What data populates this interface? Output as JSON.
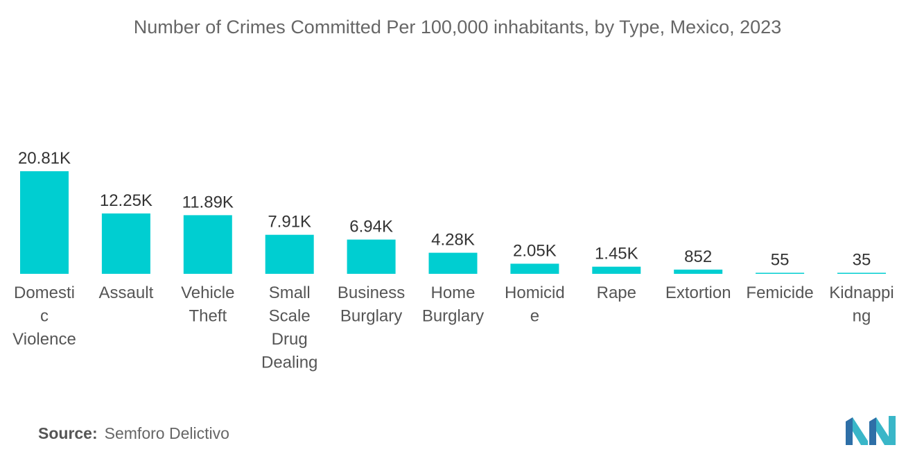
{
  "title": "Number of Crimes Committed Per 100,000 inhabitants, by Type, Mexico, 2023",
  "source": {
    "label": "Source:",
    "value": "Semforo Delictivo"
  },
  "colors": {
    "bar": "#00CED1"
  },
  "logo_icon": "mordor-intelligence-logo-icon",
  "chart_data": {
    "type": "bar",
    "title": "Number of Crimes Committed Per 100,000 inhabitants, by Type, Mexico, 2023",
    "categories": [
      "Domestic Violence",
      "Assault",
      "Vehicle Theft",
      "Small Scale Drug Dealing",
      "Business Burglary",
      "Home Burglary",
      "Homicide",
      "Rape",
      "Extortion",
      "Femicide",
      "Kidnapping"
    ],
    "category_label_lines": [
      [
        "Domesti",
        "c",
        "Violence"
      ],
      [
        "Assault"
      ],
      [
        "Vehicle",
        "Theft"
      ],
      [
        "Small",
        "Scale",
        "Drug",
        "Dealing"
      ],
      [
        "Business",
        "Burglary"
      ],
      [
        "Home",
        "Burglary"
      ],
      [
        "Homicid",
        "e"
      ],
      [
        "Rape"
      ],
      [
        "Extortion"
      ],
      [
        "Femicide"
      ],
      [
        "Kidnappi",
        "ng"
      ]
    ],
    "values": [
      20810,
      12250,
      11890,
      7910,
      6940,
      4280,
      2050,
      1450,
      852,
      55,
      35
    ],
    "value_labels": [
      "20.81K",
      "12.25K",
      "11.89K",
      "7.91K",
      "6.94K",
      "4.28K",
      "2.05K",
      "1.45K",
      "852",
      "55",
      "35"
    ],
    "xlabel": "",
    "ylabel": "",
    "ylim": [
      0,
      20810
    ],
    "grid": false,
    "legend": "none"
  }
}
